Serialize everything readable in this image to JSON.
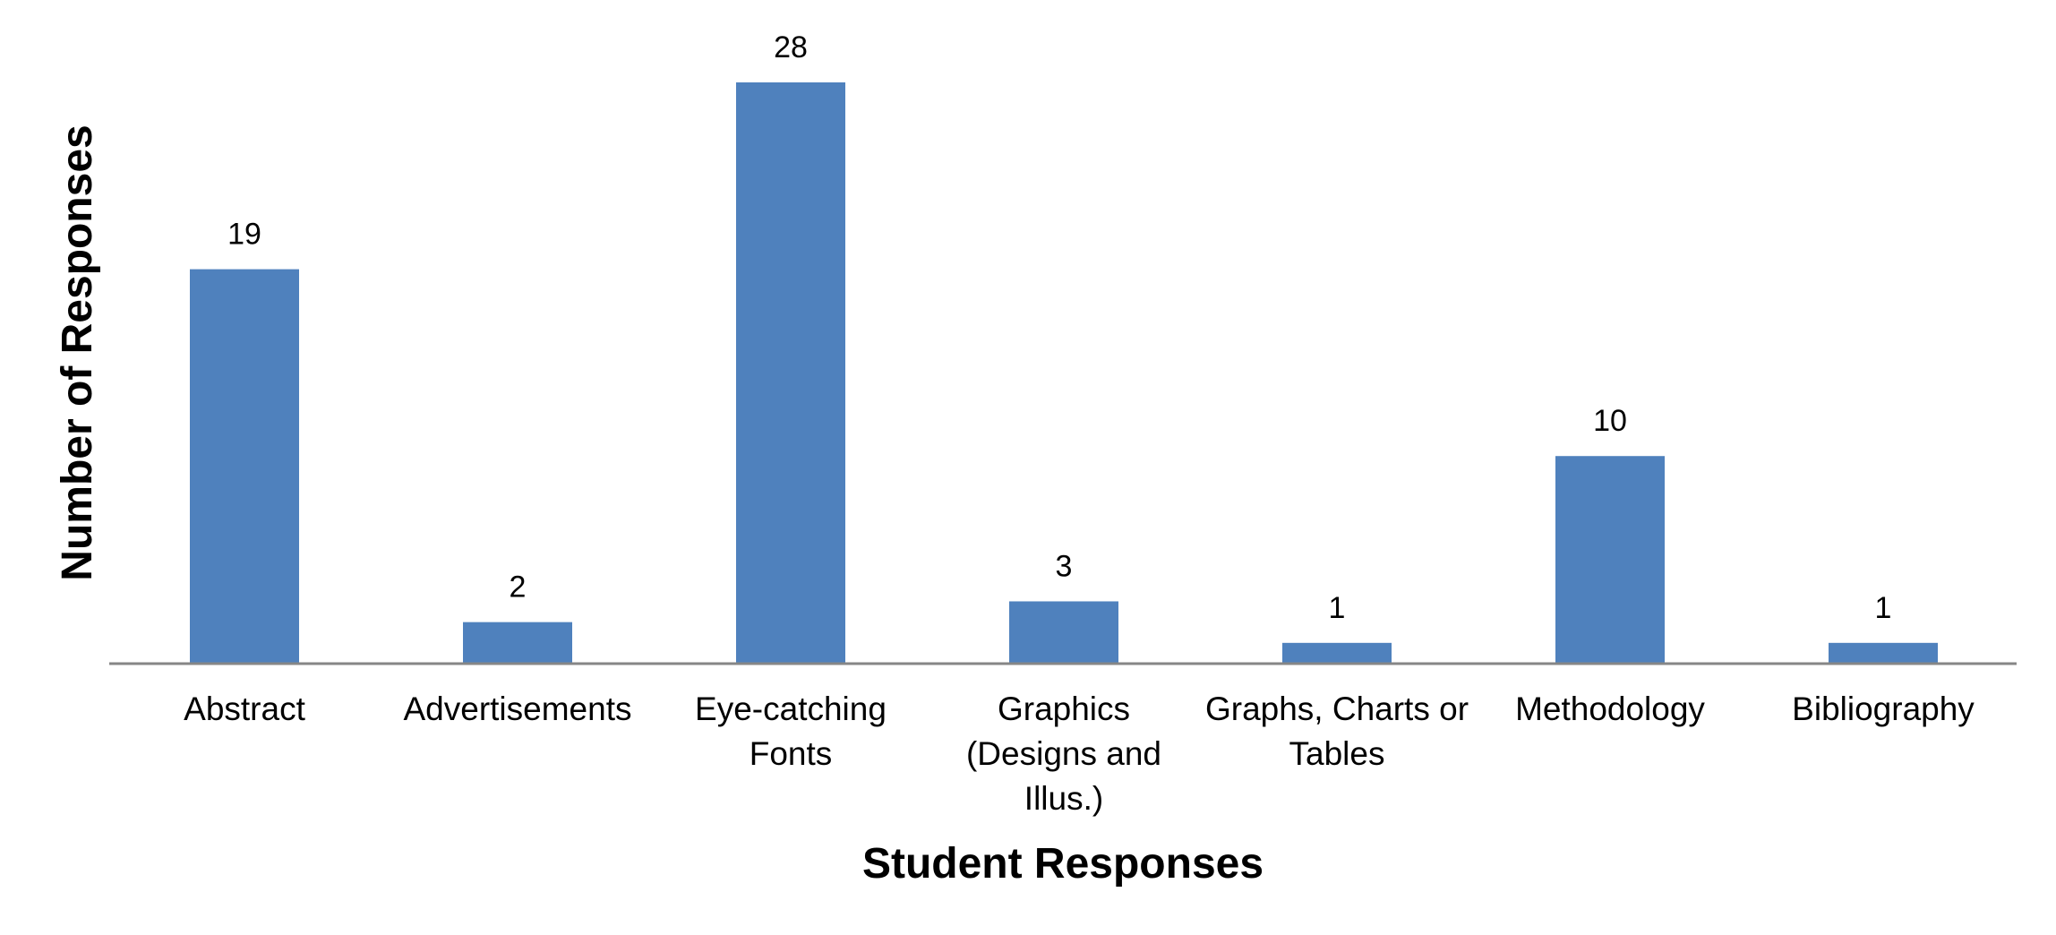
{
  "chart_data": {
    "type": "bar",
    "title": "",
    "xlabel": "Student Responses",
    "ylabel": "Number of Responses",
    "categories": [
      "Abstract",
      "Advertisements",
      "Eye-catching Fonts",
      "Graphics (Designs and Illus.)",
      "Graphs, Charts or Tables",
      "Methodology",
      "Bibliography"
    ],
    "category_label_lines": [
      [
        "Abstract"
      ],
      [
        "Advertisements"
      ],
      [
        "Eye-catching",
        "Fonts"
      ],
      [
        "Graphics",
        "(Designs and",
        "Illus.)"
      ],
      [
        "Graphs, Charts or",
        "Tables"
      ],
      [
        "Methodology"
      ],
      [
        "Bibliography"
      ]
    ],
    "values": [
      19,
      2,
      28,
      3,
      1,
      10,
      1
    ],
    "ylim": [
      0,
      28
    ],
    "grid": false,
    "legend": "none",
    "data_labels": true,
    "colors": {
      "bar": "#4F81BD",
      "axis": "#868686",
      "text": "#000000"
    }
  }
}
